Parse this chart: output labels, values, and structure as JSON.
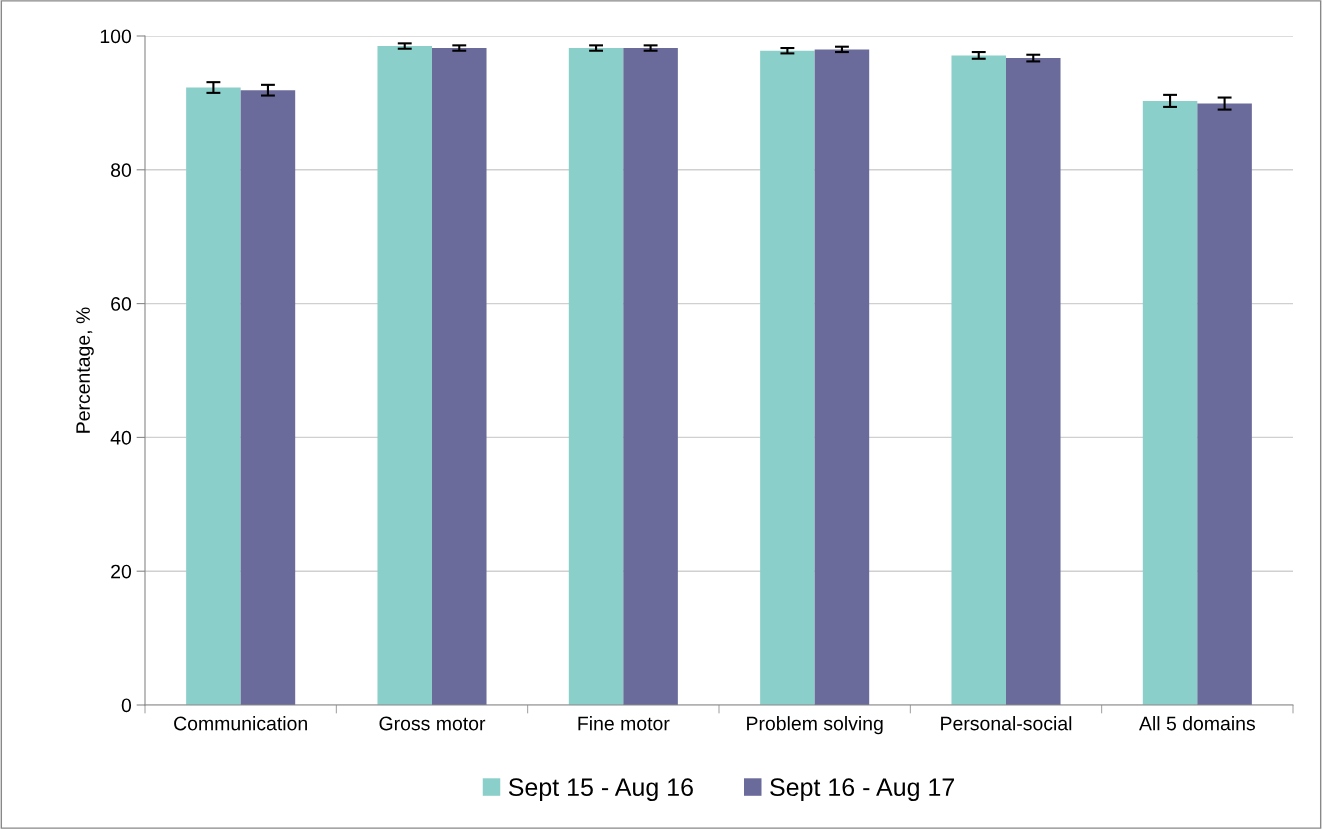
{
  "chart_data": {
    "type": "bar",
    "ylabel": "Percentage, %",
    "categories": [
      "Communication",
      "Gross motor",
      "Fine motor",
      "Problem solving",
      "Personal-social",
      "All 5 domains"
    ],
    "series": [
      {
        "name": "Sept 15 - Aug 16",
        "color": "#8bcfca",
        "values": [
          92.3,
          98.5,
          98.2,
          97.8,
          97.1,
          90.3
        ],
        "errors": [
          0.8,
          0.4,
          0.4,
          0.4,
          0.5,
          0.9
        ]
      },
      {
        "name": "Sept 16 - Aug 17",
        "color": "#6b6b9b",
        "values": [
          91.9,
          98.2,
          98.2,
          98.0,
          96.7,
          89.9
        ],
        "errors": [
          0.8,
          0.4,
          0.4,
          0.4,
          0.5,
          0.9
        ]
      }
    ],
    "ylim": [
      0,
      100
    ],
    "yticks": [
      0,
      20,
      40,
      60,
      80,
      100
    ],
    "grid": "y",
    "legend": "bottom"
  }
}
